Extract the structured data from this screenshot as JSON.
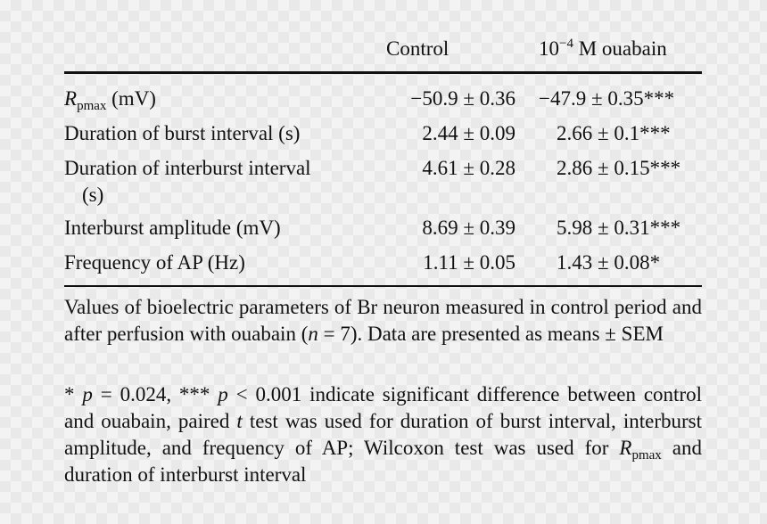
{
  "table": {
    "headers": {
      "control": "Control",
      "ouabain_base": "10",
      "ouabain_exp": "−4",
      "ouabain_rest": " M ouabain"
    },
    "rows": [
      {
        "label_sym": "R",
        "label_sub": "pmax",
        "label_rest": " (mV)",
        "control": "−50.9 ± 0.36",
        "ouabain": "−47.9 ± 0.35***"
      },
      {
        "label": "Duration of burst interval (s)",
        "control": "2.44 ± 0.09",
        "ouabain": "2.66 ± 0.1***"
      },
      {
        "label_line1": "Duration of interburst interval",
        "label_line2": "(s)",
        "control": "4.61 ± 0.28",
        "ouabain": "2.86 ± 0.15***"
      },
      {
        "label": "Interburst amplitude (mV)",
        "control": "8.69 ± 0.39",
        "ouabain": "5.98 ± 0.31***"
      },
      {
        "label": "Frequency of AP (Hz)",
        "control": "1.11 ± 0.05",
        "ouabain": "1.43 ± 0.08*"
      }
    ]
  },
  "footnotes": {
    "note1_a": "Values of bioelectric parameters of Br neuron measured in control period and after perfusion with ouabain (",
    "note1_n": "n",
    "note1_b": " = 7). Data are presented as means ± SEM",
    "note2_a": "* ",
    "note2_p1": "p",
    "note2_b": " = 0.024, *** ",
    "note2_p2": "p",
    "note2_c": " < 0.001 indicate significant difference between control and ouabain, paired ",
    "note2_t": "t",
    "note2_d": " test was used for duration of burst interval, interburst amplitude, and frequency of AP; Wilcoxon test was used for ",
    "note2_r": "R",
    "note2_rsub": "pmax",
    "note2_e": " and duration of interburst interval"
  }
}
